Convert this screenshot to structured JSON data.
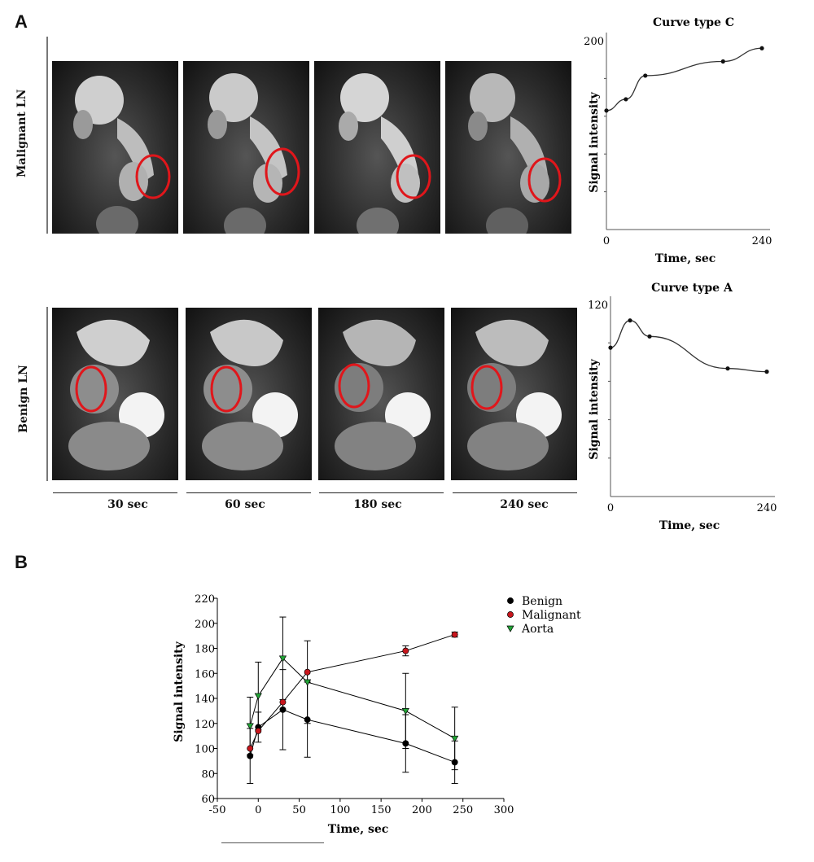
{
  "panel_a": {
    "letter": "A",
    "rows": [
      {
        "label": "Malignant LN"
      },
      {
        "label": "Benign LN"
      }
    ],
    "time_labels": [
      "30 sec",
      "60 sec",
      "180 sec",
      "240 sec"
    ]
  },
  "panel_b": {
    "letter": "B"
  },
  "colors": {
    "roi_circle": "#e0161b",
    "benign": "#000000",
    "malignant": "#c8161d",
    "aorta": "#22a537"
  },
  "chart_data": [
    {
      "type": "line",
      "title": "Curve type C",
      "xlabel": "Time, sec",
      "ylabel": "Signal intensity",
      "x_tick_labels": [
        "0",
        "240"
      ],
      "y_tick_labels": [
        "200"
      ],
      "xlim": [
        0,
        240
      ],
      "ylim": [
        0,
        200
      ],
      "series": [
        {
          "x": [
            0,
            30,
            60,
            180,
            240
          ],
          "y": [
            126,
            138,
            163,
            178,
            192
          ]
        }
      ]
    },
    {
      "type": "line",
      "title": "Curve type A",
      "xlabel": "Time, sec",
      "ylabel": "Signal intensity",
      "x_tick_labels": [
        "0",
        "240"
      ],
      "y_tick_labels": [
        "120"
      ],
      "xlim": [
        0,
        240
      ],
      "ylim": [
        0,
        120
      ],
      "series": [
        {
          "x": [
            0,
            30,
            60,
            180,
            240
          ],
          "y": [
            93,
            110,
            100,
            80,
            78
          ]
        }
      ]
    },
    {
      "type": "line",
      "title": "",
      "xlabel": "Time, sec",
      "ylabel": "Signal intensity",
      "xlim": [
        -50,
        300
      ],
      "ylim": [
        60,
        220
      ],
      "x_ticks": [
        -50,
        0,
        50,
        100,
        150,
        200,
        250,
        300
      ],
      "y_ticks": [
        60,
        80,
        100,
        120,
        140,
        160,
        180,
        200,
        220
      ],
      "legend_position": "top-right",
      "series": [
        {
          "name": "Benign",
          "marker": "circle",
          "x": [
            -10,
            0,
            30,
            60,
            180,
            240
          ],
          "y": [
            94,
            117,
            131,
            123,
            104,
            89
          ],
          "err": [
            22,
            12,
            32,
            30,
            23,
            17
          ]
        },
        {
          "name": "Malignant",
          "marker": "circle",
          "x": [
            -10,
            0,
            30,
            60,
            180,
            240
          ],
          "y": [
            100,
            114,
            137,
            161,
            178,
            191
          ],
          "err": [
            0,
            0,
            0,
            0,
            4,
            2
          ]
        },
        {
          "name": "Aorta",
          "marker": "triangle-down",
          "x": [
            -10,
            0,
            30,
            60,
            180,
            240
          ],
          "y": [
            118,
            142,
            172,
            153,
            130,
            108
          ],
          "err": [
            23,
            27,
            33,
            33,
            30,
            25
          ]
        }
      ]
    }
  ]
}
